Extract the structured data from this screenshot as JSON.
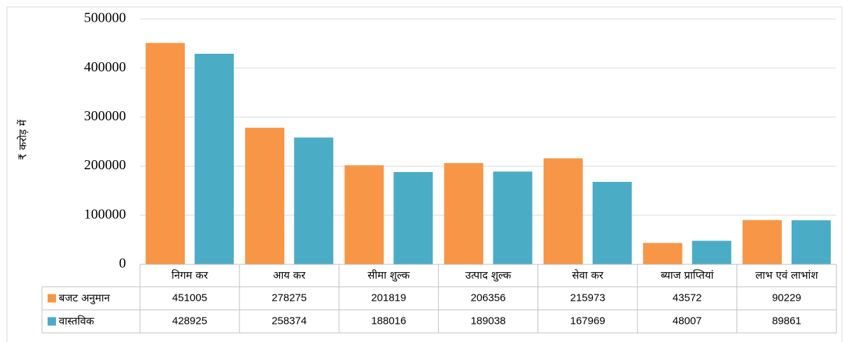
{
  "chart_data": {
    "type": "bar",
    "y_label": "₹ करोड़ में",
    "categories": [
      "निगम कर",
      "आय कर",
      "सीमा शुल्क",
      "उत्पाद शुल्क",
      "सेवा कर",
      "ब्याज प्राप्तियां",
      "लाभ एवं लाभांश"
    ],
    "series": [
      {
        "name": "बजट अनुमान",
        "color": "#f79646",
        "values": [
          451005,
          278275,
          201819,
          206356,
          215973,
          43572,
          90229
        ]
      },
      {
        "name": "वास्तविक",
        "color": "#4bacc6",
        "values": [
          428925,
          258374,
          188016,
          189038,
          167969,
          48007,
          89861
        ]
      }
    ],
    "ylim": [
      0,
      500000
    ],
    "yticks": [
      0,
      100000,
      200000,
      300000,
      400000,
      500000
    ],
    "grid": true,
    "data_table": true
  }
}
